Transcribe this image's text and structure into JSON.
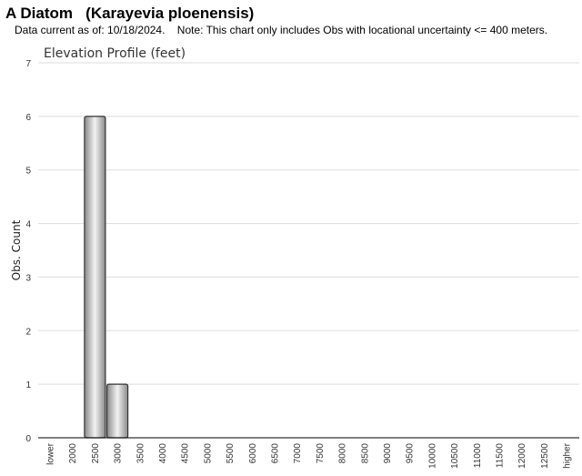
{
  "header": {
    "title": "A Diatom   (Karayevia ploenensis)",
    "note": "Data current as of: 10/18/2024.    Note: This chart only includes Obs with locational uncertainty <= 400 meters."
  },
  "chart_data": {
    "type": "bar",
    "title": "Elevation Profile (feet)",
    "xlabel": "",
    "ylabel": "Obs. Count",
    "categories": [
      "lower",
      "2000",
      "2500",
      "3000",
      "3500",
      "4000",
      "4500",
      "5000",
      "5500",
      "6000",
      "6500",
      "7000",
      "7500",
      "8000",
      "8500",
      "9000",
      "9500",
      "10000",
      "10500",
      "11000",
      "11500",
      "12000",
      "12500",
      "higher"
    ],
    "values": [
      0,
      0,
      6,
      1,
      0,
      0,
      0,
      0,
      0,
      0,
      0,
      0,
      0,
      0,
      0,
      0,
      0,
      0,
      0,
      0,
      0,
      0,
      0,
      0
    ],
    "ylim": [
      0,
      7
    ],
    "yticks": [
      0,
      1,
      2,
      3,
      4,
      5,
      6,
      7
    ],
    "grid": true,
    "legend": "none",
    "colors": {
      "bar_dark": "#8a8a8a",
      "bar_light": "#f2f2f2",
      "bar_stroke": "#333333",
      "grid": "#dddddd",
      "axis": "#000000"
    }
  }
}
